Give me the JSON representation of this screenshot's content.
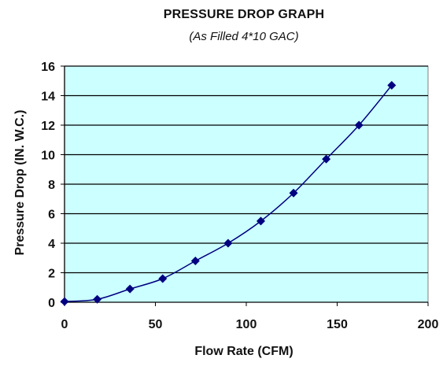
{
  "chart_data": {
    "type": "line",
    "title": "PRESSURE DROP GRAPH",
    "subtitle": "(As Filled 4*10 GAC)",
    "xlabel": "Flow Rate (CFM)",
    "ylabel": "Pressure Drop (IN. W.C.)",
    "xlim": [
      0,
      200
    ],
    "ylim": [
      0,
      16
    ],
    "x_ticks": [
      0,
      50,
      100,
      150,
      200
    ],
    "y_ticks": [
      0,
      2,
      4,
      6,
      8,
      10,
      12,
      14,
      16
    ],
    "grid": "horizontal",
    "plot_background": "#ccffff",
    "series_color": "#000080",
    "series": [
      {
        "x": [
          0,
          18,
          36,
          54,
          72,
          90,
          108,
          126,
          144,
          162,
          180
        ],
        "values": [
          0.05,
          0.2,
          0.9,
          1.6,
          2.8,
          4.0,
          5.5,
          7.4,
          9.7,
          12.0,
          14.7
        ]
      }
    ]
  }
}
